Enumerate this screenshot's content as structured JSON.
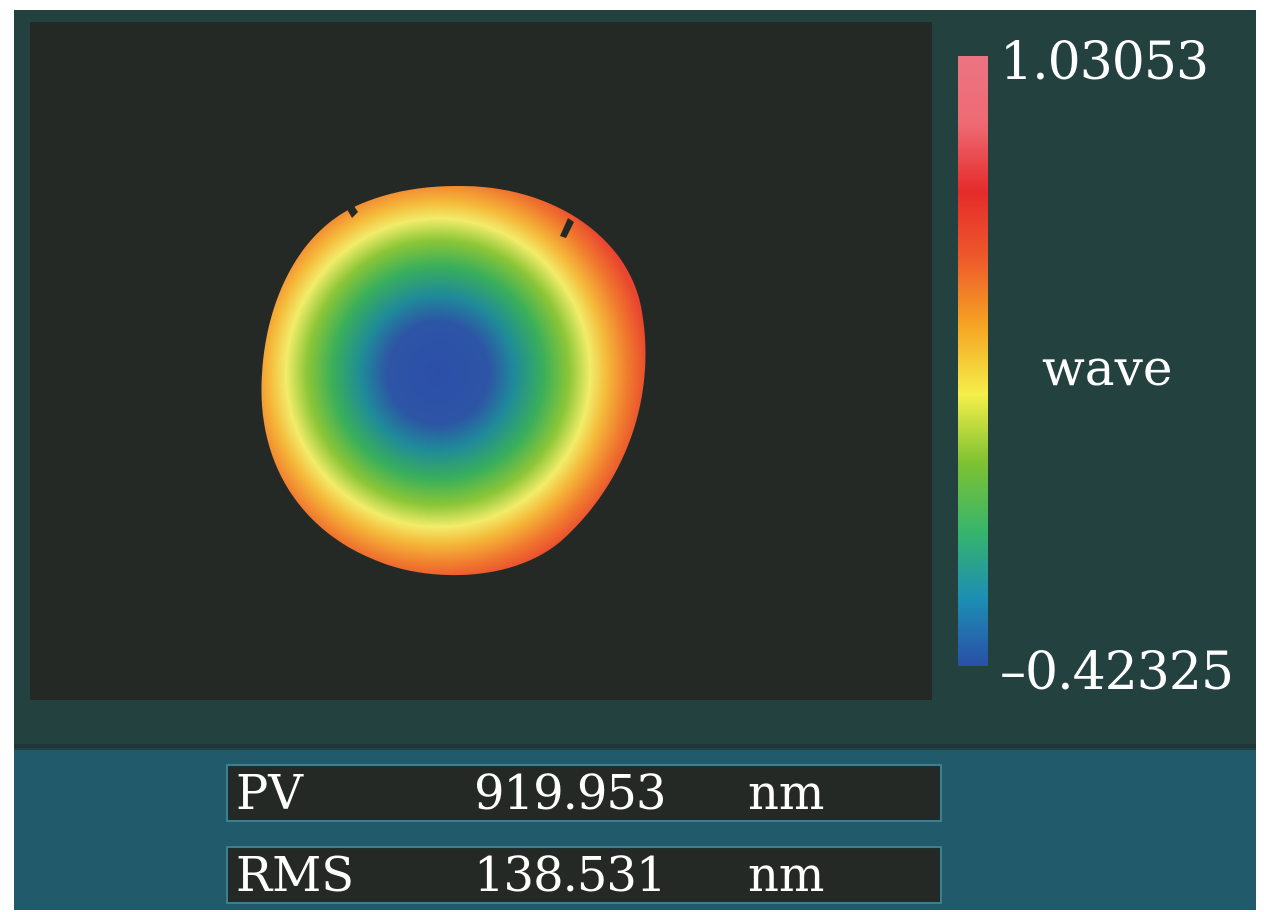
{
  "colorbar": {
    "max_label": "1.03053",
    "min_label": "–0.42325",
    "unit_label": "wave",
    "stops": [
      "#2a4fa8",
      "#1c8fb4",
      "#38b56a",
      "#7dc231",
      "#f5ef4a",
      "#f5a623",
      "#ee5a2b",
      "#e52b2b",
      "#ee6a73",
      "#ec7482"
    ]
  },
  "wavefront_map": {
    "colors": {
      "background": "#252925",
      "center": "#2a4fa8",
      "mid": "#3db36c",
      "ring": "#f3e64a",
      "edge": "#f0553a"
    }
  },
  "stats": [
    {
      "name": "PV",
      "value": "919.953",
      "unit": "nm"
    },
    {
      "name": "RMS",
      "value": "138.531",
      "unit": "nm"
    }
  ]
}
